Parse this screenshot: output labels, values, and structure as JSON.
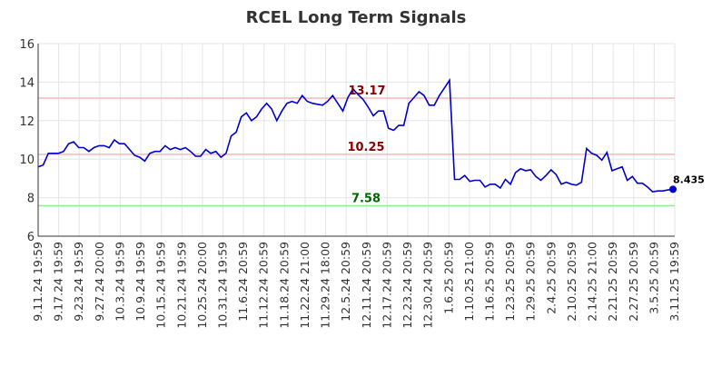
{
  "chart_data": {
    "type": "line",
    "title": "RCEL Long Term Signals",
    "ylim": [
      6,
      16
    ],
    "y_ticks": [
      "6",
      "8",
      "10",
      "12",
      "14",
      "16"
    ],
    "grid": true,
    "x_tick_labels": [
      "9.11.24 19:59",
      "9.17.24 19:59",
      "9.23.24 19:59",
      "9.27.24 20:00",
      "10.3.24 19:59",
      "10.9.24 19:59",
      "10.15.24 19:59",
      "10.21.24 19:59",
      "10.25.24 20:00",
      "10.31.24 19:59",
      "11.6.24 20:59",
      "11.12.24 20:59",
      "11.18.24 20:59",
      "11.22.24 21:00",
      "11.29.24 18:00",
      "12.5.24 20:59",
      "12.11.24 20:59",
      "12.17.24 20:59",
      "12.23.24 20:59",
      "12.30.24 20:59",
      "1.6.25 20:59",
      "1.10.25 21:00",
      "1.16.25 20:59",
      "1.23.25 20:59",
      "1.29.25 20:59",
      "2.4.25 20:59",
      "2.10.25 20:59",
      "2.14.25 21:00",
      "2.21.25 20:59",
      "2.27.25 20:59",
      "3.5.25 20:59",
      "3.11.25 19:59"
    ],
    "reference_lines": [
      {
        "label": "13.17",
        "value": 13.17,
        "color": "#f7b7b7",
        "label_color": "#8b0000"
      },
      {
        "label": "10.25",
        "value": 10.25,
        "color": "#f7b7b7",
        "label_color": "#8b0000"
      },
      {
        "label": "7.58",
        "value": 7.58,
        "color": "#90ee90",
        "label_color": "#006400"
      }
    ],
    "series": [
      {
        "color": "#0000cc",
        "values": [
          9.6,
          9.7,
          10.3,
          10.3,
          10.3,
          10.4,
          10.8,
          10.9,
          10.6,
          10.6,
          10.4,
          10.6,
          10.7,
          10.7,
          10.6,
          11.0,
          10.8,
          10.8,
          10.5,
          10.2,
          10.1,
          9.9,
          10.3,
          10.4,
          10.4,
          10.7,
          10.5,
          10.6,
          10.5,
          10.6,
          10.4,
          10.15,
          10.15,
          10.5,
          10.3,
          10.4,
          10.1,
          10.3,
          11.2,
          11.4,
          12.2,
          12.4,
          12.0,
          12.2,
          12.6,
          12.9,
          12.6,
          12.0,
          12.5,
          12.9,
          13.0,
          12.9,
          13.3,
          13.0,
          12.9,
          12.85,
          12.8,
          13.0,
          13.3,
          12.9,
          12.5,
          13.2,
          13.65,
          13.35,
          13.1,
          12.7,
          12.25,
          12.5,
          12.5,
          11.6,
          11.5,
          11.75,
          11.75,
          12.9,
          13.2,
          13.5,
          13.3,
          12.8,
          12.8,
          13.3,
          13.7,
          14.1,
          8.95,
          8.95,
          9.15,
          8.85,
          8.9,
          8.9,
          8.55,
          8.7,
          8.7,
          8.5,
          8.95,
          8.7,
          9.3,
          9.5,
          9.4,
          9.45,
          9.1,
          8.9,
          9.15,
          9.45,
          9.2,
          8.7,
          8.8,
          8.7,
          8.65,
          8.8,
          10.55,
          10.3,
          10.2,
          9.95,
          10.35,
          9.4,
          9.5,
          9.6,
          8.9,
          9.1,
          8.75,
          8.75,
          8.55,
          8.3,
          8.35,
          8.35,
          8.4,
          8.435
        ]
      }
    ],
    "last_value_label": "8.435"
  }
}
